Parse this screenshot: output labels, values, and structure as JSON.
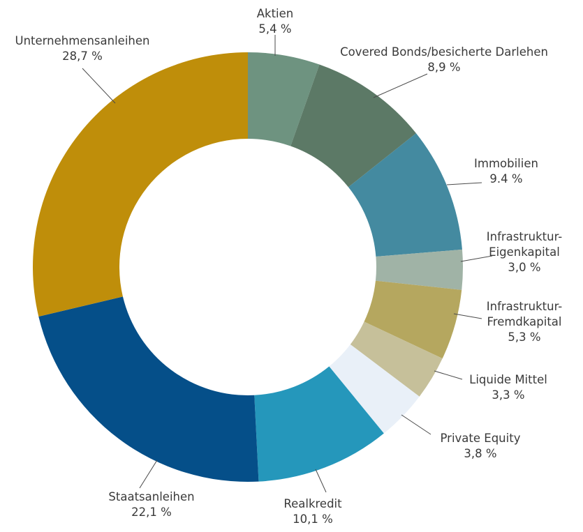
{
  "chart_data": {
    "type": "pie",
    "donut": true,
    "title": "",
    "slices": [
      {
        "label": "Aktien",
        "value_label": "5,4 %",
        "value": 5.4,
        "color": "#6e9380"
      },
      {
        "label": "Covered Bonds/besicherte Darlehen",
        "value_label": "8,9 %",
        "value": 8.9,
        "color": "#5c7966"
      },
      {
        "label": "Immobilien",
        "value_label": "9.4 %",
        "value": 9.4,
        "color": "#448aa0"
      },
      {
        "label": "Infrastruktur-Eigenkapital",
        "label_lines": [
          "Infrastruktur-",
          "Eigenkapital"
        ],
        "value_label": "3,0 %",
        "value": 3.0,
        "color": "#a0b3a6"
      },
      {
        "label": "Infrastruktur-Fremdkapital",
        "label_lines": [
          "Infrastruktur-",
          "Fremdkapital"
        ],
        "value_label": "5,3 %",
        "value": 5.3,
        "color": "#b5a75f"
      },
      {
        "label": "Liquide Mittel",
        "value_label": "3,3 %",
        "value": 3.3,
        "color": "#c6c09a"
      },
      {
        "label": "Private Equity",
        "value_label": "3,8 %",
        "value": 3.8,
        "color": "#e9f0f8"
      },
      {
        "label": "Realkredit",
        "value_label": "10,1 %",
        "value": 10.1,
        "color": "#2597bb"
      },
      {
        "label": "Staatsanleihen",
        "value_label": "22,1 %",
        "value": 22.1,
        "color": "#054f89"
      },
      {
        "label": "Unternehmensanleihen",
        "value_label": "28,7 %",
        "value": 28.7,
        "color": "#bf8e0a"
      }
    ],
    "start": "12 o'clock",
    "direction": "clockwise"
  }
}
